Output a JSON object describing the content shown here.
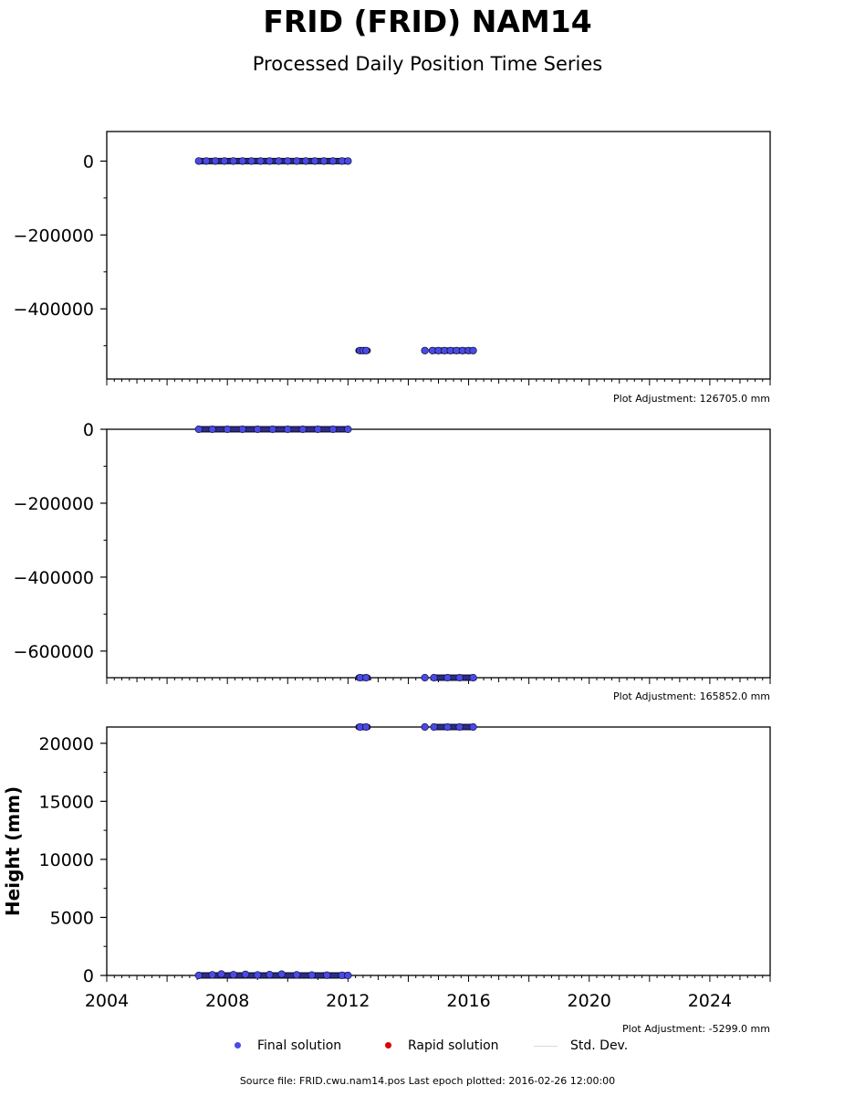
{
  "header": {
    "title": "FRID (FRID) NAM14",
    "subtitle": "Processed Daily Position Time Series"
  },
  "legend": {
    "final": "Final solution",
    "rapid": "Rapid solution",
    "stddev": "Std. Dev."
  },
  "footer": {
    "source": "Source file: FRID.cwu.nam14.pos  Last epoch plotted: 2016-02-26 12:00:00"
  },
  "colors": {
    "final": "#4a4ae6",
    "rapid": "#dd0000",
    "stddev": "#d8d8d8",
    "marker_edge": "#111133"
  },
  "chart_data": [
    {
      "type": "scatter",
      "title": "",
      "xlabel": "",
      "ylabel": "",
      "xlim": [
        2004,
        2026
      ],
      "ylim": [
        -590000,
        80000
      ],
      "yticks": [
        0,
        -200000,
        -400000
      ],
      "ytick_labels": [
        "0",
        "−200000",
        "−400000"
      ],
      "adjustment": "Plot Adjustment: 126705.0 mm",
      "series": [
        {
          "name": "Final solution",
          "points": [
            {
              "x": 2007.05,
              "y": 0
            },
            {
              "x": 2007.3,
              "y": 0
            },
            {
              "x": 2007.6,
              "y": 0
            },
            {
              "x": 2007.9,
              "y": 0
            },
            {
              "x": 2008.2,
              "y": 0
            },
            {
              "x": 2008.5,
              "y": 0
            },
            {
              "x": 2008.8,
              "y": 0
            },
            {
              "x": 2009.1,
              "y": 0
            },
            {
              "x": 2009.4,
              "y": 0
            },
            {
              "x": 2009.7,
              "y": 0
            },
            {
              "x": 2010.0,
              "y": 0
            },
            {
              "x": 2010.3,
              "y": 0
            },
            {
              "x": 2010.6,
              "y": 0
            },
            {
              "x": 2010.9,
              "y": 0
            },
            {
              "x": 2011.2,
              "y": 0
            },
            {
              "x": 2011.5,
              "y": 0
            },
            {
              "x": 2011.8,
              "y": 0
            },
            {
              "x": 2012.0,
              "y": 0
            },
            {
              "x": 2012.4,
              "y": -513000
            },
            {
              "x": 2012.5,
              "y": -513000
            },
            {
              "x": 2012.6,
              "y": -513000
            },
            {
              "x": 2014.55,
              "y": -513000
            },
            {
              "x": 2014.8,
              "y": -513000
            },
            {
              "x": 2015.0,
              "y": -513000
            },
            {
              "x": 2015.2,
              "y": -513000
            },
            {
              "x": 2015.4,
              "y": -513000
            },
            {
              "x": 2015.6,
              "y": -513000
            },
            {
              "x": 2015.8,
              "y": -513000
            },
            {
              "x": 2016.0,
              "y": -513000
            },
            {
              "x": 2016.15,
              "y": -513000
            }
          ],
          "segments": [
            {
              "x_start": 2007.05,
              "x_end": 2012.0,
              "y": 0
            },
            {
              "x_start": 2012.35,
              "x_end": 2012.65,
              "y": -513000
            },
            {
              "x_start": 2014.85,
              "x_end": 2016.15,
              "y": -513000
            }
          ]
        }
      ]
    },
    {
      "type": "scatter",
      "title": "",
      "xlabel": "",
      "ylabel": "",
      "xlim": [
        2004,
        2026
      ],
      "ylim": [
        -672000,
        0
      ],
      "yticks": [
        0,
        -200000,
        -400000,
        -600000
      ],
      "ytick_labels": [
        "0",
        "−200000",
        "−400000",
        "−600000"
      ],
      "adjustment": "Plot Adjustment: 165852.0 mm",
      "series": [
        {
          "name": "Final solution",
          "points": [
            {
              "x": 2007.05,
              "y": 0
            },
            {
              "x": 2007.5,
              "y": 0
            },
            {
              "x": 2008.0,
              "y": 0
            },
            {
              "x": 2008.5,
              "y": 0
            },
            {
              "x": 2009.0,
              "y": 0
            },
            {
              "x": 2009.5,
              "y": 0
            },
            {
              "x": 2010.0,
              "y": 0
            },
            {
              "x": 2010.5,
              "y": 0
            },
            {
              "x": 2011.0,
              "y": 0
            },
            {
              "x": 2011.5,
              "y": 0
            },
            {
              "x": 2012.0,
              "y": 0
            },
            {
              "x": 2012.4,
              "y": -672000
            },
            {
              "x": 2012.6,
              "y": -672000
            },
            {
              "x": 2014.55,
              "y": -672000
            },
            {
              "x": 2014.85,
              "y": -672000
            },
            {
              "x": 2015.3,
              "y": -672000
            },
            {
              "x": 2015.7,
              "y": -672000
            },
            {
              "x": 2016.15,
              "y": -672000
            }
          ],
          "segments": [
            {
              "x_start": 2007.05,
              "x_end": 2012.0,
              "y": 0
            },
            {
              "x_start": 2012.35,
              "x_end": 2012.65,
              "y": -672000
            },
            {
              "x_start": 2014.85,
              "x_end": 2016.15,
              "y": -672000
            }
          ]
        }
      ]
    },
    {
      "type": "scatter",
      "title": "",
      "xlabel": "",
      "ylabel": "Height (mm)",
      "xlim": [
        2004,
        2026
      ],
      "ylim": [
        0,
        21400
      ],
      "yticks": [
        0,
        5000,
        10000,
        15000,
        20000
      ],
      "ytick_labels": [
        "0",
        "5000",
        "10000",
        "15000",
        "20000"
      ],
      "xticks": [
        2004,
        2008,
        2012,
        2016,
        2020,
        2024
      ],
      "xtick_labels": [
        "2004",
        "2008",
        "2012",
        "2016",
        "2020",
        "2024"
      ],
      "adjustment": "Plot Adjustment: -5299.0 mm",
      "series": [
        {
          "name": "Final solution",
          "points": [
            {
              "x": 2007.05,
              "y": 0
            },
            {
              "x": 2007.5,
              "y": 50
            },
            {
              "x": 2007.8,
              "y": 120
            },
            {
              "x": 2008.2,
              "y": 60
            },
            {
              "x": 2008.6,
              "y": 90
            },
            {
              "x": 2009.0,
              "y": 40
            },
            {
              "x": 2009.4,
              "y": 70
            },
            {
              "x": 2009.8,
              "y": 110
            },
            {
              "x": 2010.3,
              "y": 50
            },
            {
              "x": 2010.8,
              "y": 30
            },
            {
              "x": 2011.3,
              "y": 20
            },
            {
              "x": 2011.8,
              "y": 10
            },
            {
              "x": 2012.0,
              "y": 0
            },
            {
              "x": 2012.4,
              "y": 21400
            },
            {
              "x": 2012.6,
              "y": 21400
            },
            {
              "x": 2014.55,
              "y": 21400
            },
            {
              "x": 2014.85,
              "y": 21400
            },
            {
              "x": 2015.3,
              "y": 21400
            },
            {
              "x": 2015.7,
              "y": 21400
            },
            {
              "x": 2016.15,
              "y": 21400
            }
          ],
          "segments": [
            {
              "x_start": 2007.05,
              "x_end": 2012.0,
              "y": 0
            },
            {
              "x_start": 2012.35,
              "x_end": 2012.65,
              "y": 21400
            },
            {
              "x_start": 2014.85,
              "x_end": 2016.15,
              "y": 21400
            }
          ]
        }
      ]
    }
  ]
}
